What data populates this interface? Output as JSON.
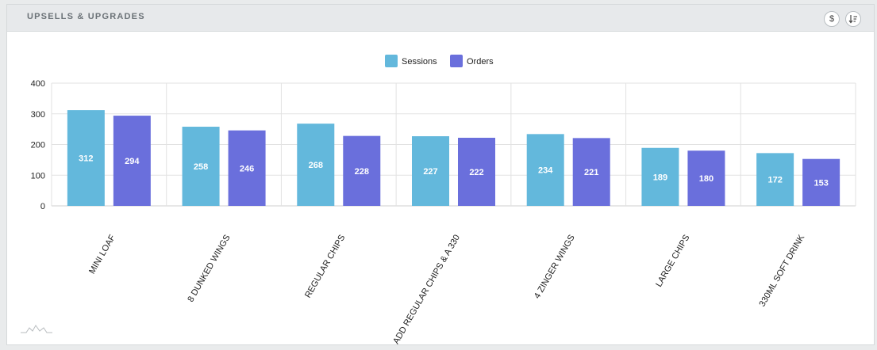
{
  "panel": {
    "title": "UPSELLS & UPGRADES",
    "currency_button_label": "$",
    "sort_button_label": "↓≡"
  },
  "colors": {
    "sessions": "#63b8dc",
    "orders": "#6a6fdc",
    "grid": "#e2e2e2",
    "axis_text": "#222222"
  },
  "chart_data": {
    "type": "bar",
    "categories": [
      "MINI LOAF",
      "8 DUNKED WINGS",
      "REGULAR CHIPS",
      "ADD REGULAR CHIPS & A 330",
      "4 ZINGER WINGS",
      "LARGE CHIPS",
      "330ML SOFT DRINK"
    ],
    "series": [
      {
        "name": "Sessions",
        "values": [
          312,
          258,
          268,
          227,
          234,
          189,
          172
        ]
      },
      {
        "name": "Orders",
        "values": [
          294,
          246,
          228,
          222,
          221,
          180,
          153
        ]
      }
    ],
    "yticks": [
      "0",
      "100",
      "200",
      "300",
      "400"
    ],
    "ylim": [
      0,
      400
    ],
    "grid": true,
    "legend": "top-center",
    "data_labels": true
  }
}
